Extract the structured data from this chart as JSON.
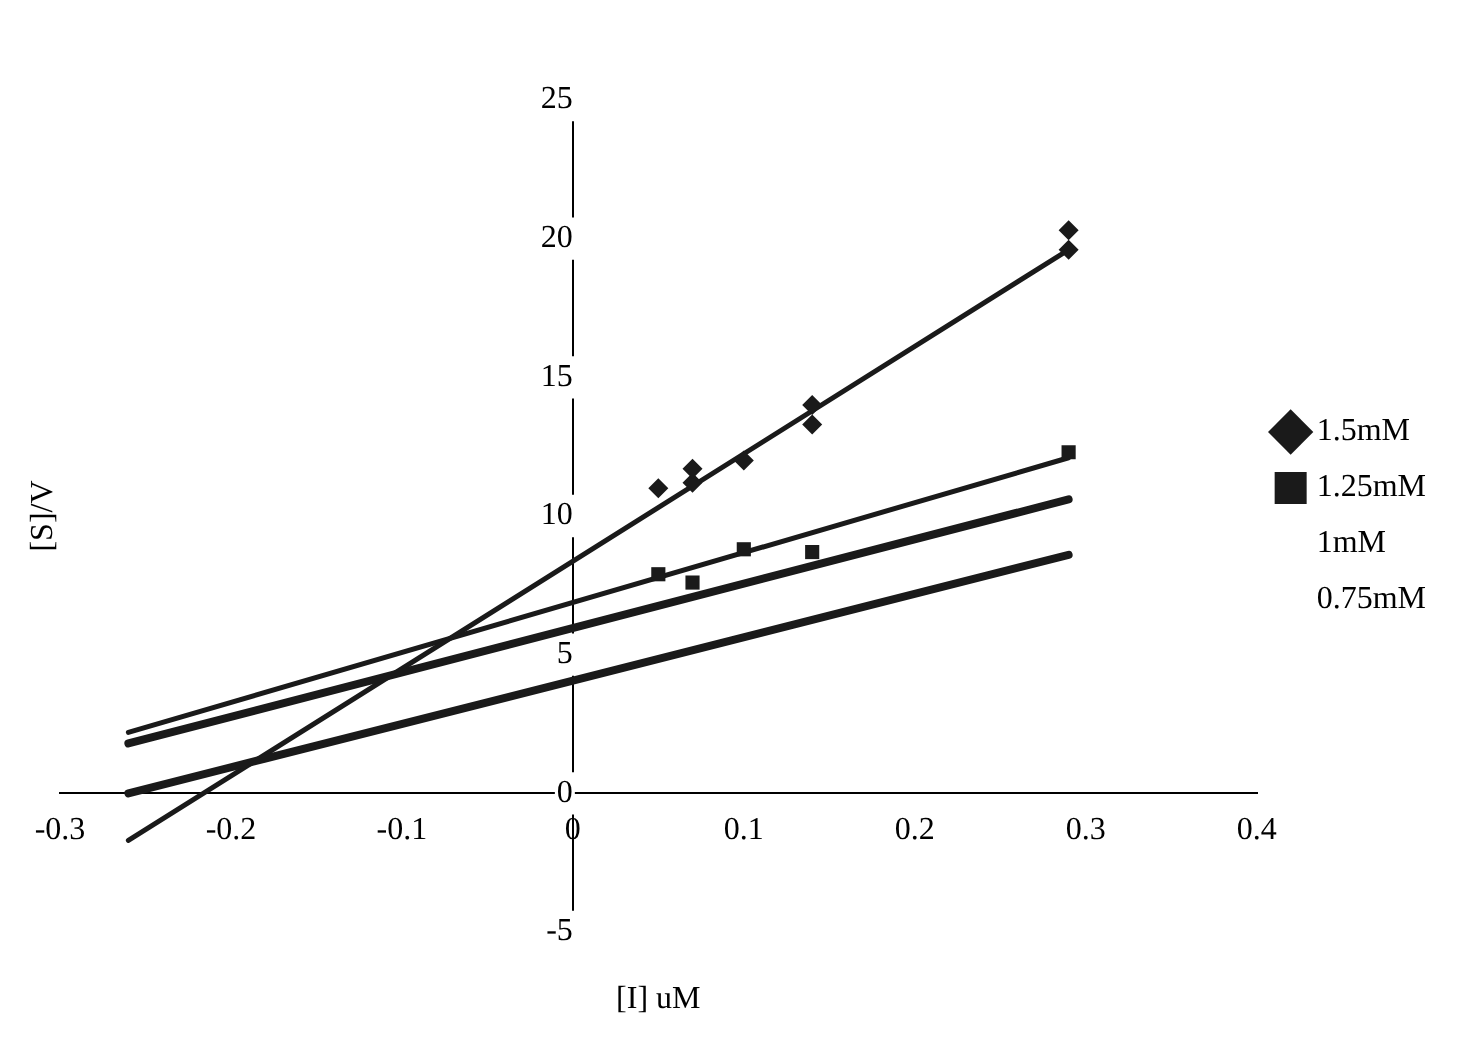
{
  "chart_data": {
    "type": "scatter",
    "xlabel": "[I] uM",
    "ylabel": "[S]/V",
    "xlim": [
      -0.3,
      0.4
    ],
    "xticks": [
      -0.3,
      -0.2,
      -0.1,
      0,
      0.1,
      0.2,
      0.3,
      0.4
    ],
    "ylim": [
      -5,
      25
    ],
    "yticks": [
      -5,
      0,
      5,
      10,
      15,
      20,
      25
    ],
    "grid": false,
    "legend": "right",
    "series": [
      {
        "name": "1.5mM",
        "type": "scatter",
        "marker": "diamond",
        "color": "#1a1a1a",
        "x": [
          0.05,
          0.07,
          0.07,
          0.1,
          0.14,
          0.14,
          0.29,
          0.29
        ],
        "values": [
          11,
          11.2,
          11.7,
          12,
          13.3,
          14,
          19.6,
          20.3
        ]
      },
      {
        "name": "1.25mM",
        "type": "scatter",
        "marker": "square",
        "color": "#1a1a1a",
        "x": [
          0.05,
          0.07,
          0.1,
          0.14,
          0.29
        ],
        "values": [
          7.9,
          7.6,
          8.8,
          8.7,
          12.3
        ]
      },
      {
        "name": "1mM",
        "type": "line",
        "marker": "none",
        "color": "#1a1a1a",
        "x": [
          -0.26,
          0.29
        ],
        "values": [
          1.8,
          10.6
        ]
      },
      {
        "name": "0.75mM",
        "type": "line",
        "marker": "none",
        "color": "#1a1a1a",
        "x": [
          -0.26,
          0.29
        ],
        "values": [
          0,
          8.6
        ]
      },
      {
        "type": "line",
        "marker": "none",
        "color": "#1a1a1a",
        "x": [
          -0.26,
          0.29
        ],
        "values": [
          -1.7,
          19.6
        ]
      },
      {
        "type": "line",
        "marker": "none",
        "color": "#1a1a1a",
        "x": [
          -0.26,
          0.29
        ],
        "values": [
          2.2,
          12.1
        ]
      }
    ]
  }
}
